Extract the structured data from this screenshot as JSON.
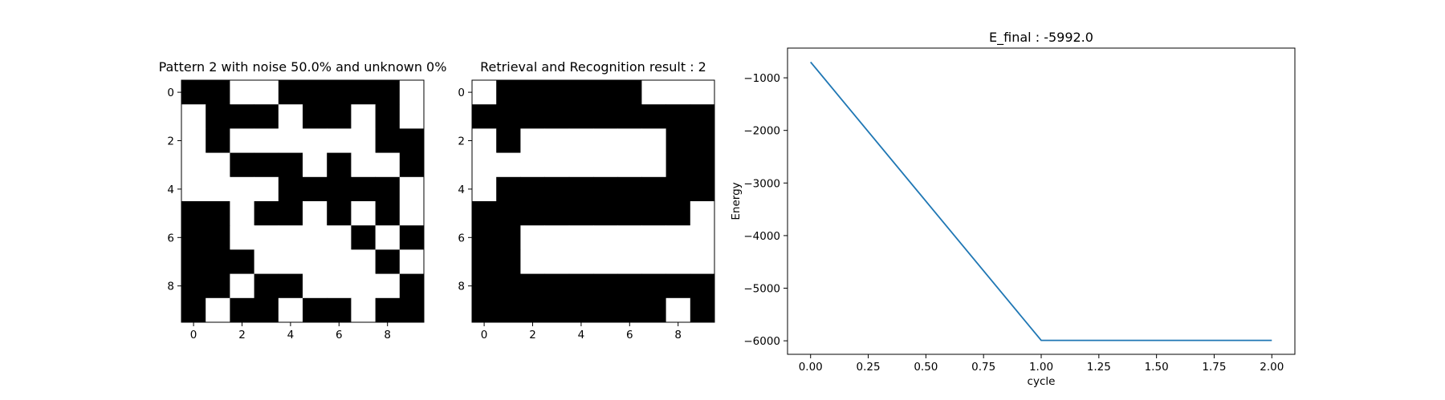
{
  "chart_data": [
    {
      "type": "heatmap",
      "title": "Pattern 2 with noise 50.0% and unknown 0%",
      "xticks": [
        "0",
        "2",
        "4",
        "6",
        "8"
      ],
      "yticks": [
        "0",
        "2",
        "4",
        "6",
        "8"
      ],
      "colormap": {
        "1": "#000000",
        "0": "#ffffff"
      },
      "grid": [
        [
          1,
          1,
          0,
          0,
          1,
          1,
          1,
          1,
          1,
          0
        ],
        [
          0,
          1,
          1,
          1,
          0,
          1,
          1,
          0,
          1,
          0
        ],
        [
          0,
          1,
          0,
          0,
          0,
          0,
          0,
          0,
          1,
          1
        ],
        [
          0,
          0,
          1,
          1,
          1,
          0,
          1,
          0,
          0,
          1
        ],
        [
          0,
          0,
          0,
          0,
          1,
          1,
          1,
          1,
          1,
          0
        ],
        [
          1,
          1,
          0,
          1,
          1,
          0,
          1,
          0,
          1,
          0
        ],
        [
          1,
          1,
          0,
          0,
          0,
          0,
          0,
          1,
          0,
          1
        ],
        [
          1,
          1,
          1,
          0,
          0,
          0,
          0,
          0,
          1,
          0
        ],
        [
          1,
          1,
          0,
          1,
          1,
          0,
          0,
          0,
          0,
          1
        ],
        [
          1,
          0,
          1,
          1,
          0,
          1,
          1,
          0,
          1,
          1
        ]
      ]
    },
    {
      "type": "heatmap",
      "title": "Retrieval and Recognition result : 2",
      "xticks": [
        "0",
        "2",
        "4",
        "6",
        "8"
      ],
      "yticks": [
        "0",
        "2",
        "4",
        "6",
        "8"
      ],
      "colormap": {
        "1": "#000000",
        "0": "#ffffff"
      },
      "grid": [
        [
          0,
          1,
          1,
          1,
          1,
          1,
          1,
          0,
          0,
          0
        ],
        [
          1,
          1,
          1,
          1,
          1,
          1,
          1,
          1,
          1,
          1
        ],
        [
          0,
          1,
          0,
          0,
          0,
          0,
          0,
          0,
          1,
          1
        ],
        [
          0,
          0,
          0,
          0,
          0,
          0,
          0,
          0,
          1,
          1
        ],
        [
          0,
          1,
          1,
          1,
          1,
          1,
          1,
          1,
          1,
          1
        ],
        [
          1,
          1,
          1,
          1,
          1,
          1,
          1,
          1,
          1,
          0
        ],
        [
          1,
          1,
          0,
          0,
          0,
          0,
          0,
          0,
          0,
          0
        ],
        [
          1,
          1,
          0,
          0,
          0,
          0,
          0,
          0,
          0,
          0
        ],
        [
          1,
          1,
          1,
          1,
          1,
          1,
          1,
          1,
          1,
          1
        ],
        [
          1,
          1,
          1,
          1,
          1,
          1,
          1,
          1,
          0,
          1
        ]
      ]
    },
    {
      "type": "line",
      "title": "E_final : -5992.0",
      "xlabel": "cycle",
      "ylabel": "Energy",
      "x": [
        0,
        1,
        2
      ],
      "series": [
        {
          "values": [
            -700,
            -5992,
            -5992
          ],
          "color": "#1f77b4"
        }
      ],
      "xlim": [
        -0.1,
        2.1
      ],
      "ylim": [
        -6257,
        -435
      ],
      "xticks": [
        "0.00",
        "0.25",
        "0.50",
        "0.75",
        "1.00",
        "1.25",
        "1.50",
        "1.75",
        "2.00"
      ],
      "xtick_values": [
        0,
        0.25,
        0.5,
        0.75,
        1.0,
        1.25,
        1.5,
        1.75,
        2.0
      ],
      "yticks": [
        "−1000",
        "−2000",
        "−3000",
        "−4000",
        "−5000",
        "−6000"
      ],
      "ytick_values": [
        -1000,
        -2000,
        -3000,
        -4000,
        -5000,
        -6000
      ],
      "grid": false
    }
  ]
}
